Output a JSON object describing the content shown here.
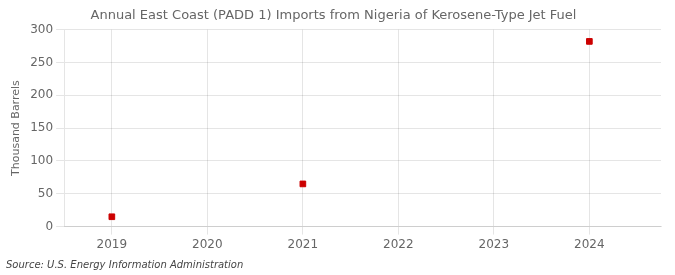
{
  "chart_data": {
    "type": "scatter",
    "title": "Annual East Coast (PADD 1) Imports from Nigeria of Kerosene-Type Jet Fuel",
    "ylabel": "Thousand Barrels",
    "annotations": [
      "Source: U.S. Energy Information Administration"
    ],
    "x": [
      2019,
      2021,
      2024
    ],
    "values": [
      15,
      65,
      282
    ],
    "color": "#cc0000",
    "marker": "square",
    "xlim": [
      2018.5,
      2024.75
    ],
    "xticks": [
      2019,
      2020,
      2021,
      2022,
      2023,
      2024
    ],
    "ylim": [
      0,
      300
    ],
    "yticks": [
      0,
      50,
      100,
      150,
      200,
      250,
      300
    ],
    "grid": true
  }
}
